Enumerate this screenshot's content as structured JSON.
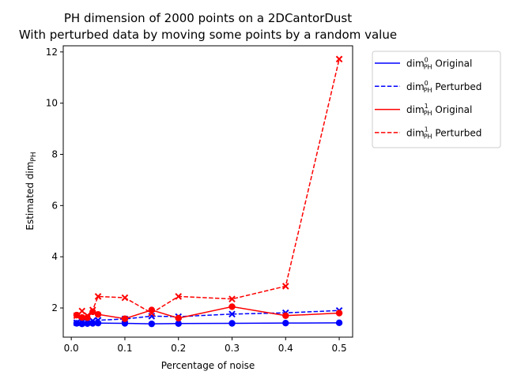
{
  "chart_data": {
    "type": "line",
    "title": "PH dimension of 2000 points on a 2DCantorDust",
    "subtitle": "With perturbed data by moving some points by a random value",
    "xlabel": "Percentage of noise",
    "ylabel_main": "Estimated dim",
    "ylabel_sub": "PH",
    "xlim": [
      -0.015,
      0.525
    ],
    "ylim": [
      0.86,
      12.24
    ],
    "xticks": [
      0.0,
      0.1,
      0.2,
      0.3,
      0.4,
      0.5
    ],
    "xtick_labels": [
      "0.0",
      "0.1",
      "0.2",
      "0.3",
      "0.4",
      "0.5"
    ],
    "yticks": [
      2,
      4,
      6,
      8,
      10,
      12
    ],
    "ytick_labels": [
      "2",
      "4",
      "6",
      "8",
      "10",
      "12"
    ],
    "grid": false,
    "legend_position": "outside-right-top",
    "x": [
      0.01,
      0.02,
      0.03,
      0.04,
      0.05,
      0.1,
      0.15,
      0.2,
      0.3,
      0.4,
      0.5
    ],
    "series": [
      {
        "name_base": "dim",
        "name_sup": "0",
        "name_sub": "PH",
        "name_tail": " Original",
        "color": "#0000ff",
        "linestyle": "solid",
        "marker": "circle",
        "values": [
          1.4,
          1.38,
          1.39,
          1.4,
          1.41,
          1.4,
          1.38,
          1.39,
          1.4,
          1.41,
          1.42
        ]
      },
      {
        "name_base": "dim",
        "name_sup": "0",
        "name_sub": "PH",
        "name_tail": " Perturbed",
        "color": "#0000ff",
        "linestyle": "dashed",
        "marker": "x",
        "values": [
          1.42,
          1.45,
          1.47,
          1.5,
          1.52,
          1.57,
          1.68,
          1.66,
          1.76,
          1.81,
          1.9
        ]
      },
      {
        "name_base": "dim",
        "name_sup": "1",
        "name_sub": "PH",
        "name_tail": " Original",
        "color": "#ff0000",
        "linestyle": "solid",
        "marker": "circle",
        "values": [
          1.72,
          1.63,
          1.62,
          1.85,
          1.75,
          1.58,
          1.92,
          1.6,
          2.05,
          1.7,
          1.8
        ]
      },
      {
        "name_base": "dim",
        "name_sup": "1",
        "name_sub": "PH",
        "name_tail": " Perturbed",
        "color": "#ff0000",
        "linestyle": "dashed",
        "marker": "x",
        "values": [
          1.7,
          1.88,
          1.7,
          1.92,
          2.45,
          2.4,
          1.8,
          2.45,
          2.35,
          2.85,
          11.72
        ]
      }
    ]
  }
}
